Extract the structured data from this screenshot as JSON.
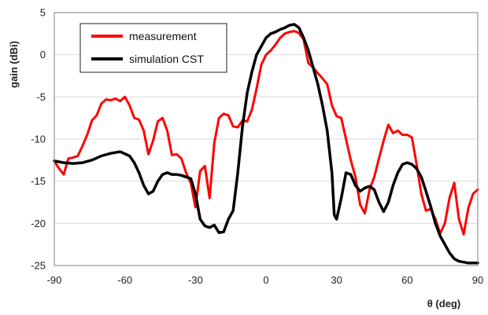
{
  "chart_data": {
    "type": "line",
    "title": "",
    "xlabel": "θ  (deg)",
    "ylabel": "gain  (dBi)",
    "xlim": [
      -90,
      90
    ],
    "ylim": [
      -25,
      5
    ],
    "xticks": [
      -90,
      -60,
      -30,
      0,
      30,
      60,
      90
    ],
    "yticks": [
      5,
      0,
      -5,
      -10,
      -15,
      -20,
      -25
    ],
    "grid": "horizontal",
    "legend_position": "top-left",
    "series": [
      {
        "name": "measurement",
        "color": "#ff0000",
        "x": [
          -90,
          -88,
          -86,
          -84,
          -82,
          -80,
          -78,
          -76,
          -74,
          -72,
          -70,
          -68,
          -66,
          -64,
          -62,
          -60,
          -58,
          -56,
          -54,
          -52,
          -50,
          -48,
          -46,
          -44,
          -42,
          -40,
          -38,
          -36,
          -34,
          -32,
          -30,
          -28,
          -26,
          -24,
          -22,
          -20,
          -18,
          -16,
          -14,
          -12,
          -10,
          -8,
          -6,
          -4,
          -2,
          0,
          2,
          4,
          6,
          8,
          10,
          12,
          14,
          16,
          18,
          20,
          22,
          24,
          26,
          28,
          30,
          32,
          34,
          36,
          38,
          40,
          42,
          44,
          46,
          48,
          50,
          52,
          54,
          56,
          58,
          60,
          62,
          64,
          66,
          68,
          70,
          72,
          74,
          76,
          78,
          80,
          82,
          84,
          86,
          88,
          90
        ],
        "y": [
          -12.6,
          -13.5,
          -14.2,
          -12.3,
          -12.2,
          -12,
          -10.8,
          -9.5,
          -7.8,
          -7.2,
          -5.8,
          -5.3,
          -5.4,
          -5.2,
          -5.5,
          -5,
          -6,
          -7.5,
          -7.7,
          -9,
          -11.8,
          -10.2,
          -7.9,
          -7.5,
          -9,
          -11.9,
          -11.8,
          -12.3,
          -14,
          -15.2,
          -18.1,
          -13.8,
          -13.2,
          -17,
          -10.5,
          -7.5,
          -7,
          -7.2,
          -8.5,
          -8.6,
          -7.8,
          -7.9,
          -6.5,
          -4,
          -1.2,
          0,
          0.5,
          1.2,
          2,
          2.5,
          2.7,
          2.8,
          2.6,
          1.8,
          -1,
          -1.5,
          -2.2,
          -2.8,
          -3.5,
          -6,
          -7.3,
          -7.5,
          -10,
          -12.5,
          -14.5,
          -17.8,
          -18.8,
          -16,
          -14.5,
          -12.3,
          -10.2,
          -8.3,
          -9.3,
          -9,
          -9.5,
          -9.5,
          -9.8,
          -13,
          -16.5,
          -18.5,
          -18.3,
          -19.5,
          -21.2,
          -20,
          -17,
          -15.2,
          -19.5,
          -21.3,
          -18.2,
          -16.5,
          -16
        ]
      },
      {
        "name": "simulation CST",
        "color": "#000000",
        "x": [
          -90,
          -86,
          -82,
          -78,
          -74,
          -70,
          -66,
          -62,
          -58,
          -56,
          -54,
          -52,
          -50,
          -48,
          -46,
          -44,
          -42,
          -40,
          -38,
          -36,
          -34,
          -32,
          -30,
          -28,
          -26,
          -24,
          -22,
          -20,
          -18,
          -16,
          -14,
          -12,
          -10,
          -8,
          -6,
          -4,
          -2,
          0,
          2,
          4,
          6,
          8,
          10,
          12,
          14,
          16,
          18,
          20,
          22,
          24,
          26,
          28,
          29,
          30,
          32,
          34,
          36,
          38,
          40,
          42,
          44,
          46,
          48,
          50,
          52,
          54,
          56,
          58,
          60,
          62,
          64,
          66,
          68,
          70,
          72,
          74,
          76,
          78,
          80,
          82,
          84,
          86,
          88,
          90
        ],
        "y": [
          -12.6,
          -12.8,
          -12.9,
          -12.8,
          -12.5,
          -12,
          -11.7,
          -11.5,
          -12,
          -12.8,
          -14,
          -15.5,
          -16.5,
          -16.2,
          -15,
          -14.2,
          -14,
          -14.2,
          -14.2,
          -14.3,
          -14.5,
          -14.7,
          -16.5,
          -19.5,
          -20.3,
          -20.5,
          -20.2,
          -21.1,
          -21,
          -19.5,
          -18.5,
          -14,
          -8.5,
          -4.5,
          -2,
          0,
          1,
          2,
          2.5,
          2.7,
          3,
          3.2,
          3.5,
          3.6,
          3.2,
          2,
          0.5,
          -1.5,
          -3.5,
          -6,
          -9,
          -14,
          -19,
          -19.5,
          -17,
          -14,
          -14.2,
          -15.5,
          -16.2,
          -15.8,
          -15.6,
          -16,
          -17.5,
          -18.6,
          -17.5,
          -15.5,
          -14,
          -13,
          -12.8,
          -13,
          -13.5,
          -14.5,
          -16.2,
          -18,
          -20,
          -21.5,
          -22.5,
          -23.5,
          -24.2,
          -24.5,
          -24.6,
          -24.7,
          -24.7,
          -24.7
        ]
      }
    ]
  }
}
